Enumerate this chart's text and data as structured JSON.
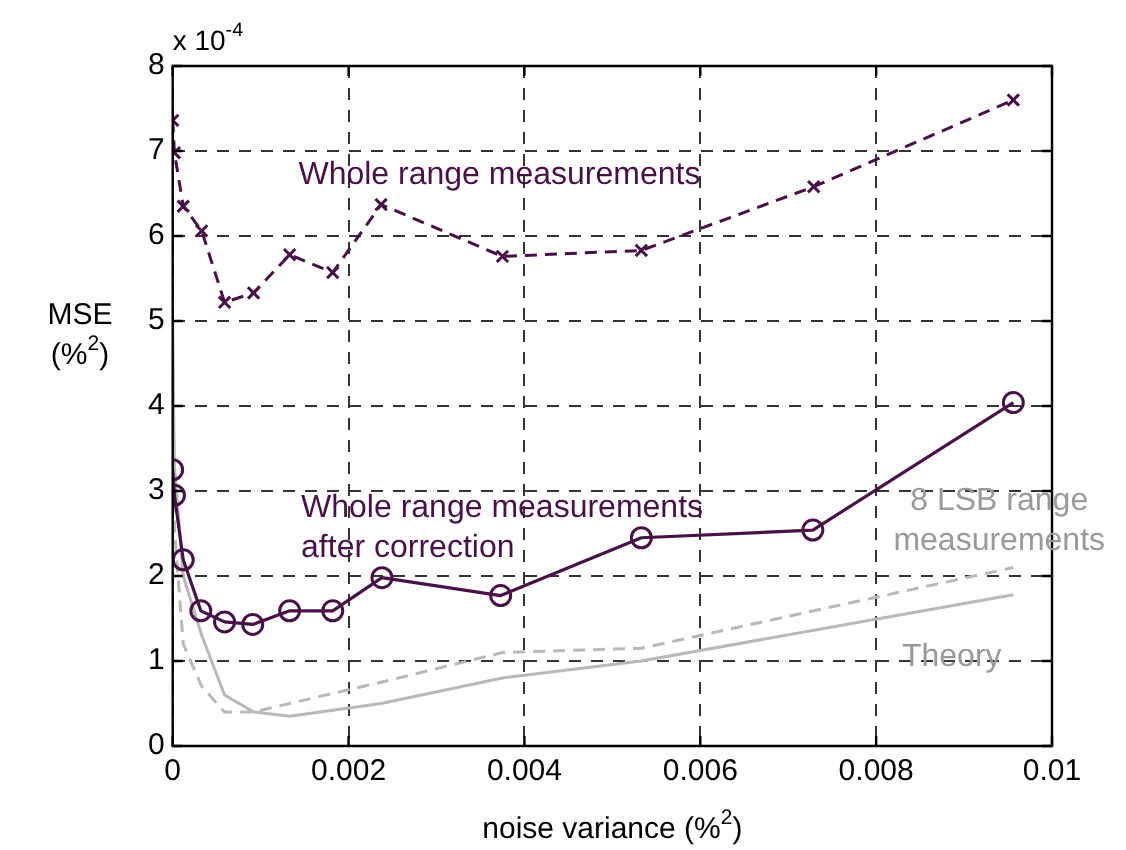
{
  "chart_data": {
    "type": "line",
    "xlabel": "noise variance (%$^{2}$)",
    "ylabel": "MSE\n(%$^{2}$)",
    "xlim": [
      0,
      0.01
    ],
    "xticks": [
      0,
      0.002,
      0.004,
      0.006,
      0.008,
      0.01
    ],
    "ylim": [
      0,
      8
    ],
    "yticks": [
      0,
      1,
      2,
      3,
      4,
      5,
      6,
      7,
      8
    ],
    "grid": true,
    "legend": false,
    "series": [
      {
        "color": "#4a1048",
        "marker": "cross",
        "line_style": "dashed",
        "x": [
          0,
          2e-05,
          0.00012,
          0.00033,
          0.00059,
          0.00092,
          0.00133,
          0.00182,
          0.00237,
          0.00375,
          0.00533,
          0.00729,
          0.00956
        ],
        "values": [
          7.36,
          6.98,
          6.35,
          6.06,
          5.22,
          5.33,
          5.78,
          5.57,
          6.37,
          5.76,
          5.83,
          6.58,
          7.6
        ]
      },
      {
        "color": "#4a1048",
        "marker": "circle",
        "line_style": "solid",
        "x": [
          0,
          2e-05,
          0.00012,
          0.00032,
          0.00059,
          0.00091,
          0.00133,
          0.00182,
          0.00238,
          0.00373,
          0.00533,
          0.00728,
          0.00956
        ],
        "values": [
          3.25,
          2.95,
          2.19,
          1.59,
          1.46,
          1.43,
          1.59,
          1.59,
          1.98,
          1.77,
          2.45,
          2.54,
          4.04
        ]
      },
      {
        "color": "#b8b8b8",
        "marker": "none",
        "line_style": "dashed",
        "x": [
          0,
          2e-05,
          0.00012,
          0.00033,
          0.00059,
          0.00092,
          0.00133,
          0.00237,
          0.00375,
          0.00533,
          0.00956
        ],
        "values": [
          4.3,
          2.55,
          1.2,
          0.7,
          0.4,
          0.4,
          0.5,
          0.75,
          1.1,
          1.15,
          2.1
        ]
      },
      {
        "color": "#b8b8b8",
        "marker": "none",
        "line_style": "solid",
        "x": [
          0,
          2e-05,
          0.00012,
          0.00033,
          0.00059,
          0.00092,
          0.00133,
          0.00237,
          0.00375,
          0.00533,
          0.00956
        ],
        "values": [
          5.0,
          3.3,
          2.0,
          1.3,
          0.6,
          0.4,
          0.35,
          0.5,
          0.8,
          1.0,
          1.78
        ]
      }
    ],
    "annotations": [
      "Whole range measurements",
      "Whole range measurements\nafter correction",
      "8 LSB range\nmeasurements",
      "Theory",
      "x 10$^{-4}$"
    ]
  }
}
